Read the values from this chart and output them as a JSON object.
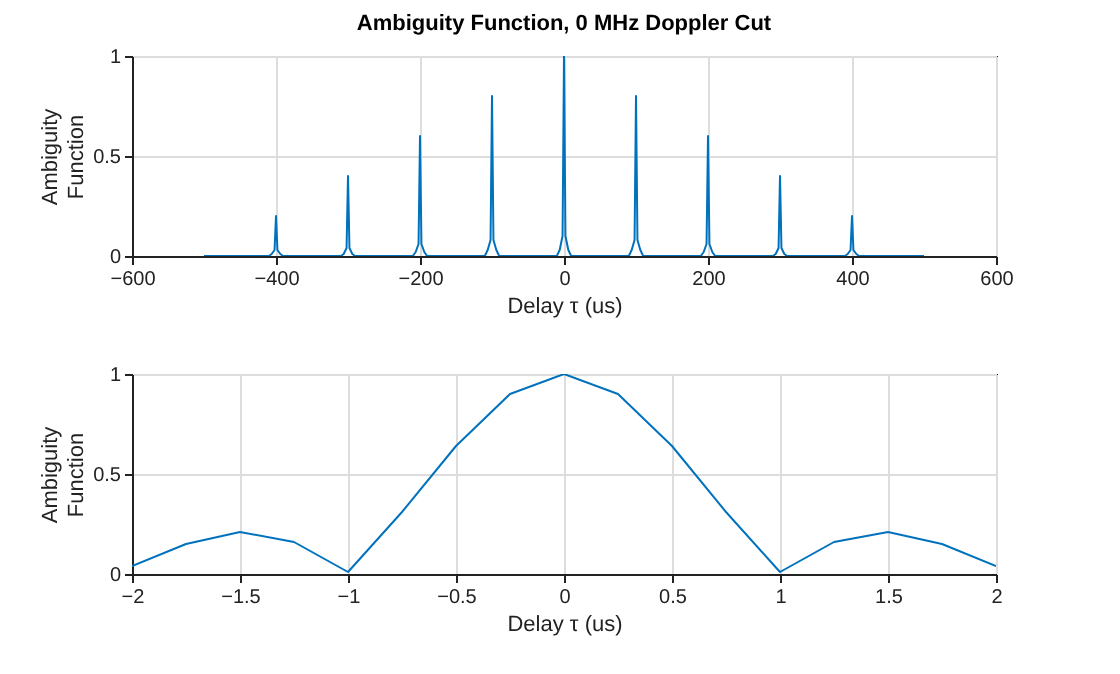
{
  "chart_data": [
    {
      "type": "line",
      "title": "Ambiguity Function, 0 MHz Doppler Cut",
      "xlabel": "Delay τ (us)",
      "ylabel": "Ambiguity\nFunction",
      "xlim": [
        -600,
        600
      ],
      "xticks": [
        -600,
        -400,
        -200,
        0,
        200,
        400,
        600
      ],
      "ylim": [
        0,
        1
      ],
      "yticks": [
        0,
        0.5,
        1
      ],
      "grid": true,
      "x": [
        -500,
        -410,
        -406,
        -402,
        -400,
        -398,
        -394,
        -390,
        -310,
        -306,
        -302,
        -300,
        -298,
        -294,
        -290,
        -210,
        -206,
        -202,
        -200,
        -198,
        -194,
        -190,
        -110,
        -106,
        -102,
        -100,
        -98,
        -94,
        -90,
        -10,
        -6,
        -2,
        0,
        2,
        6,
        10,
        90,
        94,
        98,
        100,
        102,
        106,
        110,
        190,
        194,
        198,
        200,
        202,
        206,
        210,
        290,
        294,
        298,
        300,
        302,
        306,
        310,
        390,
        394,
        398,
        400,
        402,
        406,
        410,
        500
      ],
      "series": [
        {
          "color": "#0072bd",
          "values": [
            0,
            0,
            0.01,
            0.03,
            0.2,
            0.03,
            0.01,
            0,
            0,
            0.01,
            0.04,
            0.4,
            0.04,
            0.01,
            0,
            0,
            0.02,
            0.06,
            0.6,
            0.06,
            0.02,
            0,
            0,
            0.03,
            0.08,
            0.8,
            0.08,
            0.03,
            0,
            0,
            0.03,
            0.1,
            1,
            0.1,
            0.03,
            0,
            0,
            0.03,
            0.08,
            0.8,
            0.08,
            0.03,
            0,
            0,
            0.02,
            0.06,
            0.6,
            0.06,
            0.02,
            0,
            0,
            0.01,
            0.04,
            0.4,
            0.04,
            0.01,
            0,
            0,
            0.01,
            0.03,
            0.2,
            0.03,
            0.01,
            0,
            0
          ]
        }
      ]
    },
    {
      "type": "line",
      "xlabel": "Delay τ (us)",
      "ylabel": "Ambiguity\nFunction",
      "xlim": [
        -2,
        2
      ],
      "xticks": [
        -2,
        -1.5,
        -1,
        -0.5,
        0,
        0.5,
        1,
        1.5,
        2
      ],
      "ylim": [
        0,
        1
      ],
      "yticks": [
        0,
        0.5,
        1
      ],
      "grid": true,
      "x": [
        -2,
        -1.75,
        -1.5,
        -1.25,
        -1,
        -0.75,
        -0.5,
        -0.25,
        0,
        0.25,
        0.5,
        0.75,
        1,
        1.25,
        1.5,
        1.75,
        2
      ],
      "series": [
        {
          "color": "#0072bd",
          "values": [
            0.04,
            0.15,
            0.21,
            0.16,
            0.01,
            0.31,
            0.64,
            0.9,
            1,
            0.9,
            0.64,
            0.31,
            0.01,
            0.16,
            0.21,
            0.15,
            0.04
          ]
        }
      ]
    }
  ]
}
